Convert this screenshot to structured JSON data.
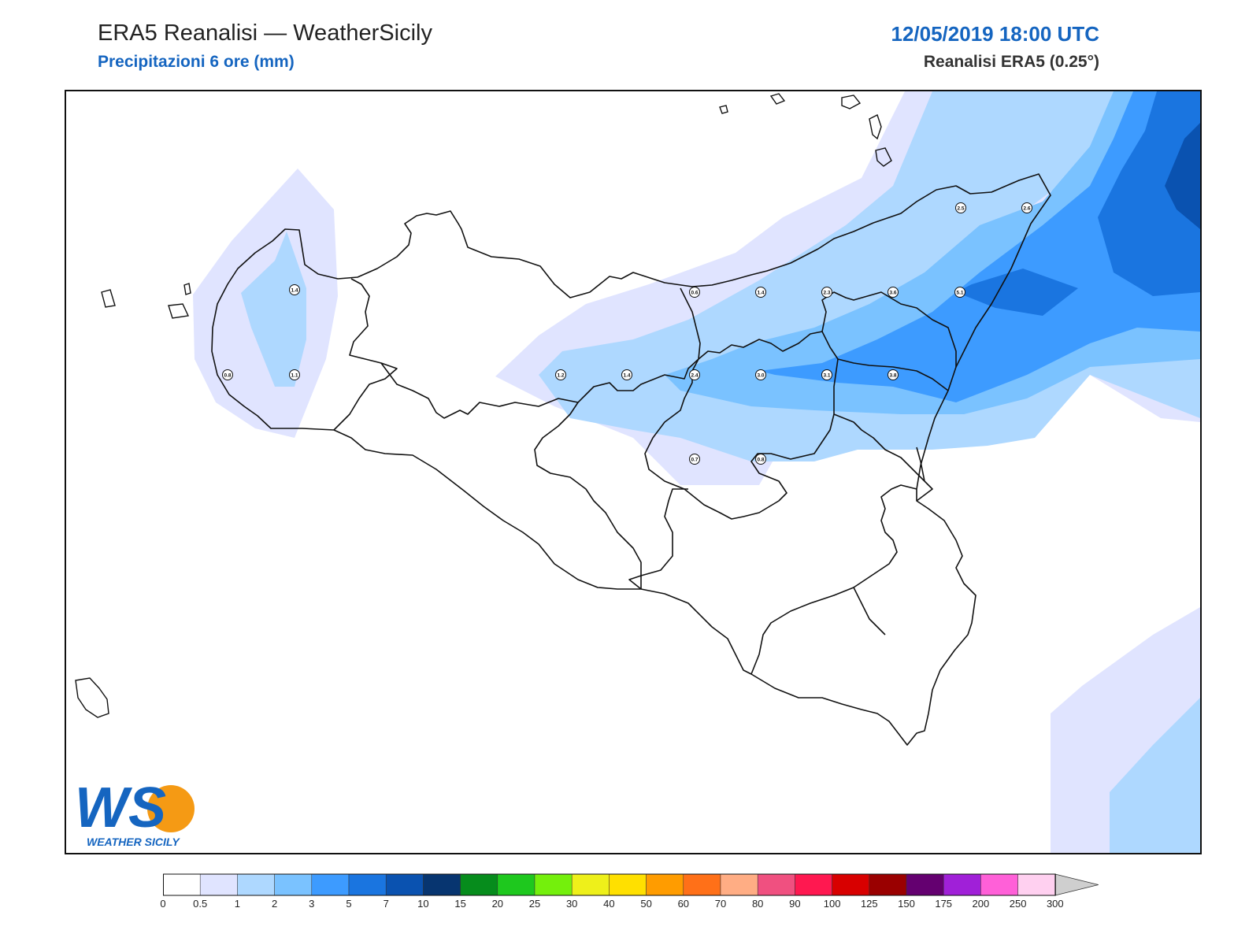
{
  "header": {
    "title": "ERA5 Reanalisi — WeatherSicily",
    "subtitle": "Precipitazioni 6 ore (mm)",
    "datetime": "12/05/2019 18:00 UTC",
    "source": "Reanalisi ERA5 (0.25°)"
  },
  "logo": {
    "letters": "WS",
    "text": "WEATHER SICILY"
  },
  "legend": {
    "labels": [
      "0",
      "0.5",
      "1",
      "2",
      "3",
      "5",
      "7",
      "10",
      "15",
      "20",
      "25",
      "30",
      "40",
      "50",
      "60",
      "70",
      "80",
      "90",
      "100",
      "125",
      "150",
      "175",
      "200",
      "250",
      "300"
    ],
    "colors": [
      "#ffffff",
      "#e0e4ff",
      "#aed8ff",
      "#7ac2ff",
      "#3d9bff",
      "#1a75e0",
      "#0a52b0",
      "#073570",
      "#068c1c",
      "#1ec81e",
      "#74f00c",
      "#eef01a",
      "#ffe000",
      "#ff9c00",
      "#ff7018",
      "#ffad84",
      "#f05080",
      "#ff1850",
      "#d80000",
      "#9a0000",
      "#640070",
      "#a020d8",
      "#ff60d8",
      "#ffd0f0"
    ],
    "extend_color": "#cfcfcf"
  },
  "stations": [
    {
      "label": "1.4"
    },
    {
      "label": "0.8"
    },
    {
      "label": "1.1"
    },
    {
      "label": "2.5"
    },
    {
      "label": "2.6"
    },
    {
      "label": "0.6"
    },
    {
      "label": "1.4"
    },
    {
      "label": "2.3"
    },
    {
      "label": "3.6"
    },
    {
      "label": "5.1"
    },
    {
      "label": "1.2"
    },
    {
      "label": "1.4"
    },
    {
      "label": "2.4"
    },
    {
      "label": "3.0"
    },
    {
      "label": "3.1"
    },
    {
      "label": "3.8"
    },
    {
      "label": "0.7"
    },
    {
      "label": "0.8"
    }
  ],
  "colors": {
    "accent": "#1565c0",
    "level_05": "#e0e4ff",
    "level_1": "#aed8ff",
    "level_2": "#7ac2ff",
    "level_3": "#3d9bff",
    "level_5": "#1a75e0",
    "level_7": "#0a52b0"
  }
}
